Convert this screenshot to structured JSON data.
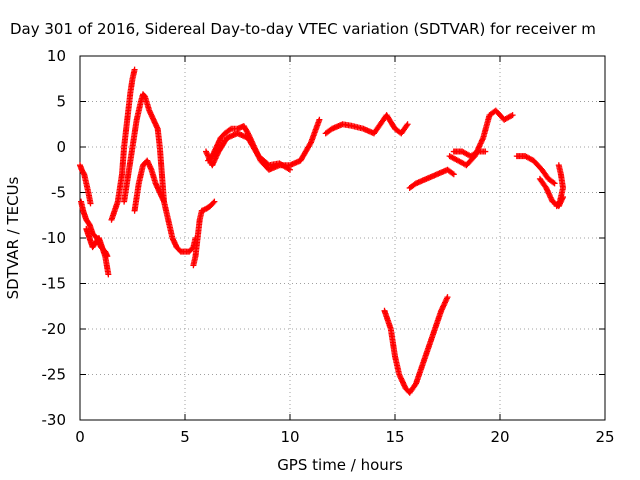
{
  "chart_data": {
    "type": "scatter",
    "title": "Day 301 of 2016, Sidereal Day-to-day VTEC variation (SDTVAR) for receiver m",
    "xlabel": "GPS time / hours",
    "ylabel": "SDTVAR / TECUs",
    "xlim": [
      0,
      25
    ],
    "ylim": [
      -30,
      10
    ],
    "xticks": [
      0,
      5,
      10,
      15,
      20,
      25
    ],
    "yticks": [
      -30,
      -25,
      -20,
      -15,
      -10,
      -5,
      0,
      5,
      10
    ],
    "grid": true,
    "marker": "plus",
    "color": "#ff0000",
    "series": [
      {
        "x": [
          0.0,
          0.1,
          0.2,
          0.3,
          0.4,
          0.5
        ],
        "y": [
          -2.0,
          -2.6,
          -3.0,
          -4.0,
          -5.0,
          -6.2
        ]
      },
      {
        "x": [
          0.05,
          0.15,
          0.3,
          0.45,
          0.6,
          0.8,
          1.0,
          1.2,
          1.3
        ],
        "y": [
          -6.0,
          -7.0,
          -8.0,
          -8.5,
          -9.5,
          -10.0,
          -11.0,
          -11.5,
          -12.0
        ]
      },
      {
        "x": [
          0.3,
          0.45,
          0.6,
          0.75,
          0.9,
          1.05,
          1.2,
          1.35
        ],
        "y": [
          -9.0,
          -10.0,
          -11.0,
          -10.5,
          -10.0,
          -11.0,
          -12.0,
          -14.0
        ]
      },
      {
        "x": [
          1.5,
          1.8,
          2.0,
          2.1,
          2.2,
          2.3,
          2.4,
          2.5,
          2.6
        ],
        "y": [
          -8.0,
          -6.0,
          -3.0,
          0.0,
          2.0,
          4.0,
          6.0,
          7.5,
          8.5
        ]
      },
      {
        "x": [
          2.1,
          2.3,
          2.5,
          2.7,
          2.9,
          3.0,
          3.1,
          3.3,
          3.5,
          3.7,
          3.8,
          3.9,
          4.0,
          4.2,
          4.4,
          4.6,
          4.8,
          5.0,
          5.2,
          5.4,
          5.5
        ],
        "y": [
          -6.0,
          -3.0,
          0.0,
          3.0,
          5.0,
          5.8,
          5.5,
          4.0,
          3.0,
          2.0,
          0.0,
          -3.0,
          -6.0,
          -8.0,
          -10.0,
          -11.0,
          -11.5,
          -11.5,
          -11.5,
          -11.0,
          -10.0
        ]
      },
      {
        "x": [
          2.6,
          2.8,
          3.0,
          3.2,
          3.4,
          3.6,
          3.8,
          4.0
        ],
        "y": [
          -7.0,
          -4.0,
          -2.0,
          -1.5,
          -2.5,
          -4.0,
          -5.0,
          -6.0
        ]
      },
      {
        "x": [
          5.4,
          5.5,
          5.6,
          5.7,
          5.8,
          6.0,
          6.2,
          6.4
        ],
        "y": [
          -13.0,
          -12.0,
          -10.0,
          -8.0,
          -7.0,
          -6.8,
          -6.5,
          -6.0
        ]
      },
      {
        "x": [
          6.1,
          6.3,
          6.5,
          6.7,
          6.9,
          7.2,
          7.5,
          7.8,
          8.0,
          8.3,
          8.6,
          9.0,
          9.5,
          10.0,
          10.5,
          11.0,
          11.4
        ],
        "y": [
          -1.5,
          -1.0,
          0.0,
          1.0,
          1.5,
          2.0,
          2.0,
          2.3,
          1.5,
          0.0,
          -1.5,
          -2.5,
          -2.0,
          -2.0,
          -1.5,
          0.5,
          3.0
        ]
      },
      {
        "x": [
          6.0,
          6.3,
          6.6,
          7.0,
          7.5,
          8.0,
          8.5,
          9.0,
          9.5,
          10.0
        ],
        "y": [
          -0.5,
          -2.0,
          -0.5,
          1.0,
          1.5,
          1.0,
          -1.0,
          -2.0,
          -1.8,
          -2.5
        ]
      },
      {
        "x": [
          11.7,
          12.0,
          12.5,
          13.0,
          13.5,
          14.0,
          14.3,
          14.6,
          15.0,
          15.3,
          15.6
        ],
        "y": [
          1.5,
          2.0,
          2.5,
          2.3,
          2.0,
          1.5,
          2.5,
          3.5,
          2.0,
          1.5,
          2.5
        ]
      },
      {
        "x": [
          14.5,
          14.8,
          15.0,
          15.2,
          15.5,
          15.7,
          16.0,
          16.3,
          16.6,
          16.9,
          17.2,
          17.5
        ],
        "y": [
          -18.0,
          -20.0,
          -23.0,
          -25.0,
          -26.5,
          -27.0,
          -26.0,
          -24.0,
          -22.0,
          -20.0,
          -18.0,
          -16.5
        ]
      },
      {
        "x": [
          15.7,
          16.0,
          16.5,
          17.0,
          17.5,
          17.8
        ],
        "y": [
          -4.5,
          -4.0,
          -3.5,
          -3.0,
          -2.5,
          -3.0
        ]
      },
      {
        "x": [
          17.6,
          18.0,
          18.4,
          18.8,
          19.2,
          19.5,
          19.8,
          20.2,
          20.6
        ],
        "y": [
          -1.0,
          -1.5,
          -2.0,
          -1.0,
          1.0,
          3.5,
          4.0,
          3.0,
          3.5
        ]
      },
      {
        "x": [
          17.8,
          18.2,
          18.6,
          19.0,
          19.3
        ],
        "y": [
          -0.5,
          -0.5,
          -1.0,
          -0.5,
          -0.5
        ]
      },
      {
        "x": [
          20.8,
          21.2,
          21.6,
          22.0,
          22.3,
          22.6
        ],
        "y": [
          -1.0,
          -1.0,
          -1.5,
          -2.5,
          -3.5,
          -4.0
        ]
      },
      {
        "x": [
          21.9,
          22.2,
          22.5,
          22.8,
          23.0
        ],
        "y": [
          -3.5,
          -4.5,
          -6.0,
          -6.5,
          -5.5
        ]
      },
      {
        "x": [
          22.8,
          22.9,
          23.0,
          22.85,
          22.7
        ],
        "y": [
          -2.0,
          -3.0,
          -4.5,
          -6.0,
          -6.5
        ]
      }
    ]
  }
}
